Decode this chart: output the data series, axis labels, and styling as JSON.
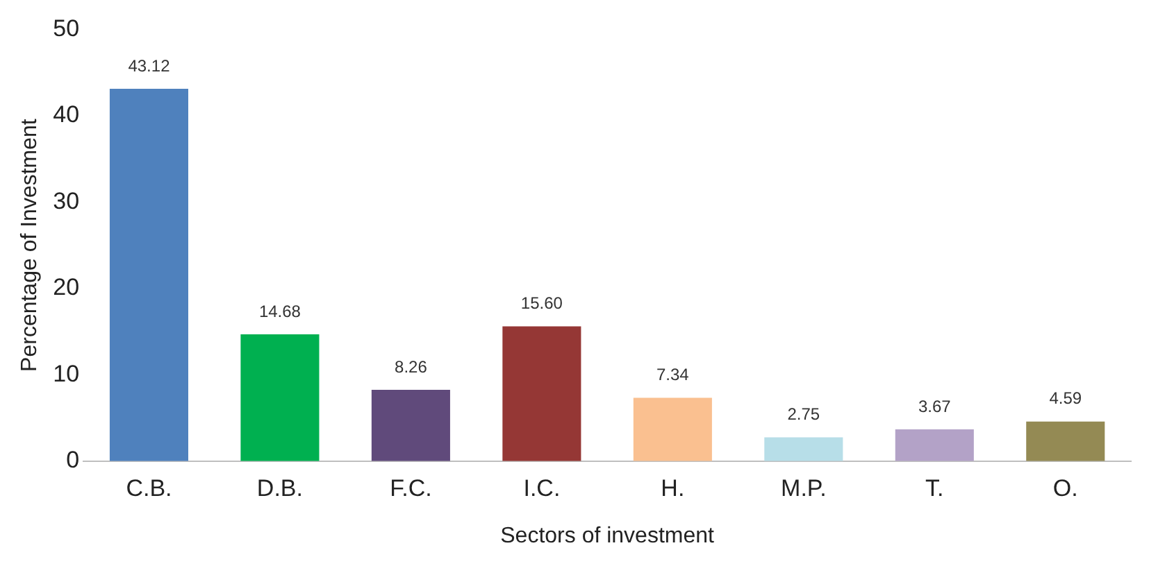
{
  "chart_data": {
    "type": "bar",
    "xlabel": "Sectors of investment",
    "ylabel": "Percentage of Investment",
    "categories": [
      "C.B.",
      "D.B.",
      "F.C.",
      "I.C.",
      "H.",
      "M.P.",
      "T.",
      "O."
    ],
    "values": [
      43.12,
      14.68,
      8.26,
      15.6,
      7.34,
      2.75,
      3.67,
      4.59
    ],
    "colors": [
      "#4f81bd",
      "#00b050",
      "#604a7b",
      "#953735",
      "#fac090",
      "#b7dee8",
      "#b3a2c7",
      "#948a54"
    ],
    "value_labels": [
      "43.12",
      "14.68",
      "8.26",
      "15.60",
      "7.34",
      "2.75",
      "3.67",
      "4.59"
    ],
    "ylim": [
      0,
      50
    ],
    "yticks": [
      0,
      10,
      20,
      30,
      40,
      50
    ]
  }
}
